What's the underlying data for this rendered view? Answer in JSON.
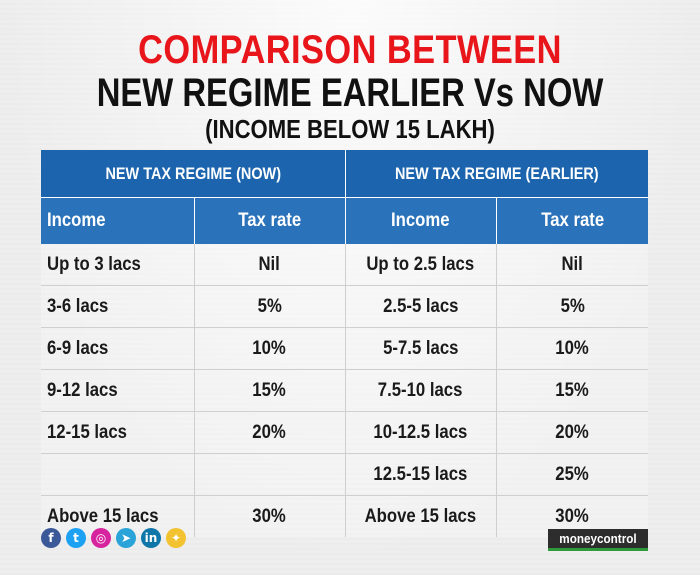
{
  "title": {
    "line1": "COMPARISON BETWEEN",
    "line2": "NEW REGIME EARLIER Vs NOW",
    "line3": "(INCOME BELOW 15 LAKH)"
  },
  "table": {
    "group_headers": [
      "NEW TAX REGIME (NOW)",
      "NEW TAX REGIME (EARLIER)"
    ],
    "column_headers": [
      "Income",
      "Tax rate",
      "Income",
      "Tax rate"
    ],
    "rows": [
      [
        "Up to 3 lacs",
        "Nil",
        "Up to 2.5 lacs",
        "Nil"
      ],
      [
        "3-6 lacs",
        "5%",
        "2.5-5 lacs",
        "5%"
      ],
      [
        "6-9 lacs",
        "10%",
        "5-7.5 lacs",
        "10%"
      ],
      [
        "9-12 lacs",
        "15%",
        "7.5-10 lacs",
        "15%"
      ],
      [
        "12-15 lacs",
        "20%",
        "10-12.5 lacs",
        "20%"
      ],
      [
        "",
        "",
        "12.5-15 lacs",
        "25%"
      ],
      [
        "Above 15 lacs",
        "30%",
        "Above 15 lacs",
        "30%"
      ]
    ]
  },
  "social": [
    {
      "icon": "facebook-icon",
      "glyph": "f",
      "color": "#3b5998"
    },
    {
      "icon": "twitter-icon",
      "glyph": "t",
      "color": "#1da1f2"
    },
    {
      "icon": "instagram-icon",
      "glyph": "◎",
      "color": "#d6249f"
    },
    {
      "icon": "telegram-icon",
      "glyph": "➤",
      "color": "#2aa3d8"
    },
    {
      "icon": "linkedin-icon",
      "glyph": "in",
      "color": "#0e76a8"
    },
    {
      "icon": "koo-icon",
      "glyph": "✦",
      "color": "#f2c230"
    }
  ],
  "brand": {
    "logo_text": "moneycontrol"
  }
}
